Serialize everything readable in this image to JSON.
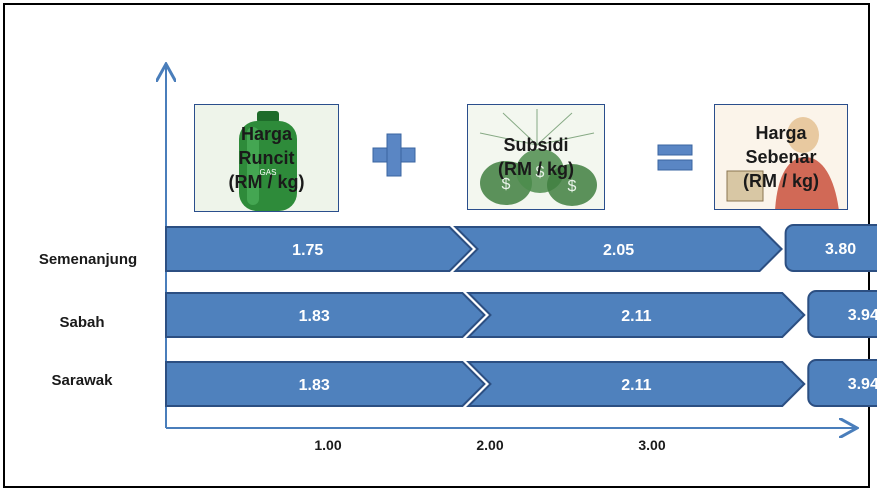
{
  "headers": [
    {
      "label": "Harga\nRuncit\n(RM / kg)"
    },
    {
      "label": "Subsidi\n(RM / kg)"
    },
    {
      "label": "Harga\nSebenar\n(RM / kg)"
    }
  ],
  "chart_data": {
    "type": "bar",
    "categories": [
      "Semenanjung",
      "Sabah",
      "Sarawak"
    ],
    "series": [
      {
        "name": "Harga Runcit (RM / kg)",
        "values": [
          1.75,
          1.83,
          1.83
        ]
      },
      {
        "name": "Subsidi (RM / kg)",
        "values": [
          2.05,
          2.11,
          2.11
        ]
      },
      {
        "name": "Harga Sebenar (RM / kg)",
        "values": [
          3.8,
          3.94,
          3.94
        ]
      }
    ],
    "data_labels": {
      "runcit": [
        "1.75",
        "1.83",
        "1.83"
      ],
      "subsidi": [
        "2.05",
        "2.11",
        "2.11"
      ],
      "sebenar": [
        "3.80",
        "3.94",
        "3.94"
      ]
    },
    "x_ticks": [
      "1.00",
      "2.00",
      "3.00"
    ],
    "x_tick_values": [
      1,
      2,
      3
    ],
    "xlim": [
      0,
      3.8
    ],
    "grid": false,
    "legend": "none",
    "colors": {
      "bar_fill": "#4f81bd",
      "bar_stroke": "#2c4f82",
      "axis": "#4a7ebb",
      "label_text": "#ffffff"
    }
  }
}
